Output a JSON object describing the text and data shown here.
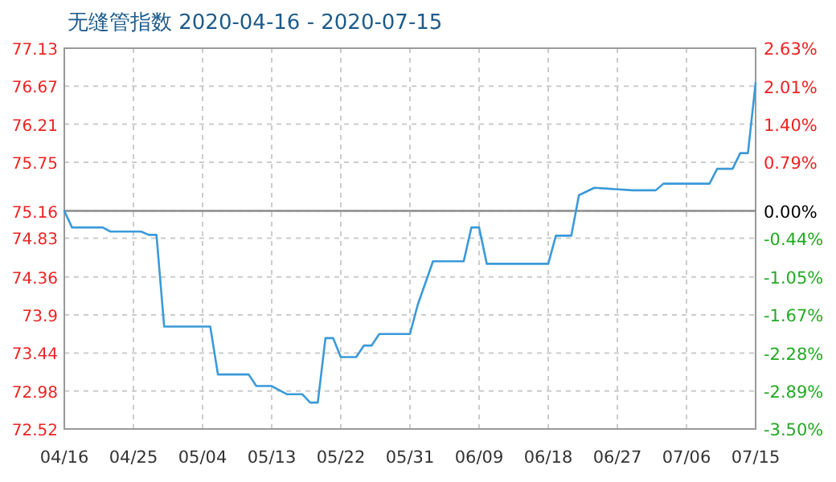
{
  "chart_data": {
    "type": "line",
    "title": "无缝管指数 2020-04-16 - 2020-07-15",
    "x": [
      "2020-04-16",
      "2020-04-17",
      "2020-04-21",
      "2020-04-22",
      "2020-04-26",
      "2020-04-27",
      "2020-04-28",
      "2020-04-29",
      "2020-05-05",
      "2020-05-06",
      "2020-05-10",
      "2020-05-11",
      "2020-05-13",
      "2020-05-15",
      "2020-05-17",
      "2020-05-18",
      "2020-05-19",
      "2020-05-20",
      "2020-05-21",
      "2020-05-22",
      "2020-05-24",
      "2020-05-25",
      "2020-05-26",
      "2020-05-27",
      "2020-05-31",
      "2020-06-01",
      "2020-06-03",
      "2020-06-07",
      "2020-06-08",
      "2020-06-09",
      "2020-06-10",
      "2020-06-18",
      "2020-06-19",
      "2020-06-21",
      "2020-06-22",
      "2020-06-24",
      "2020-06-29",
      "2020-07-02",
      "2020-07-03",
      "2020-07-09",
      "2020-07-10",
      "2020-07-12",
      "2020-07-13",
      "2020-07-14",
      "2020-07-15"
    ],
    "series": [
      {
        "color": "#3a9ad9",
        "values": [
          75.16,
          74.96,
          74.96,
          74.91,
          74.91,
          74.87,
          74.87,
          73.76,
          73.76,
          73.18,
          73.18,
          73.04,
          73.04,
          72.94,
          72.94,
          72.84,
          72.84,
          73.62,
          73.62,
          73.39,
          73.39,
          73.53,
          73.53,
          73.67,
          73.67,
          74.02,
          74.55,
          74.55,
          74.96,
          74.96,
          74.52,
          74.52,
          74.86,
          74.86,
          75.35,
          75.44,
          75.41,
          75.41,
          75.49,
          75.49,
          75.67,
          75.67,
          75.86,
          75.86,
          76.71
        ]
      }
    ],
    "xlim": [
      "2020-04-16",
      "2020-07-15"
    ],
    "xticks": [
      {
        "value": "2020-04-16",
        "label": "04/16"
      },
      {
        "value": "2020-04-25",
        "label": "04/25"
      },
      {
        "value": "2020-05-04",
        "label": "05/04"
      },
      {
        "value": "2020-05-13",
        "label": "05/13"
      },
      {
        "value": "2020-05-22",
        "label": "05/22"
      },
      {
        "value": "2020-05-31",
        "label": "05/31"
      },
      {
        "value": "2020-06-09",
        "label": "06/09"
      },
      {
        "value": "2020-06-18",
        "label": "06/18"
      },
      {
        "value": "2020-06-27",
        "label": "06/27"
      },
      {
        "value": "2020-07-06",
        "label": "07/06"
      },
      {
        "value": "2020-07-15",
        "label": "07/15"
      }
    ],
    "ylim": [
      72.52,
      77.13
    ],
    "yticks": [
      77.13,
      76.67,
      76.21,
      75.75,
      75.16,
      74.83,
      74.36,
      73.9,
      73.44,
      72.98,
      72.52
    ],
    "y2lim": [
      -3.5,
      2.63
    ],
    "y2ticks": [
      {
        "value": 2.63,
        "label": "2.63%"
      },
      {
        "value": 2.01,
        "label": "2.01%"
      },
      {
        "value": 1.4,
        "label": "1.40%"
      },
      {
        "value": 0.79,
        "label": "0.79%"
      },
      {
        "value": 0,
        "label": "0.00%"
      },
      {
        "value": -0.44,
        "label": "-0.44%"
      },
      {
        "value": -1.05,
        "label": "-1.05%"
      },
      {
        "value": -1.67,
        "label": "-1.67%"
      },
      {
        "value": -2.28,
        "label": "-2.28%"
      },
      {
        "value": -2.89,
        "label": "-2.89%"
      },
      {
        "value": -3.5,
        "label": "-3.50%"
      }
    ],
    "ref_lines": [
      {
        "axis": "y",
        "value": 75.16,
        "color": "#8c8c8c"
      }
    ],
    "grid": true,
    "line_style": "solid",
    "marker": "none"
  }
}
